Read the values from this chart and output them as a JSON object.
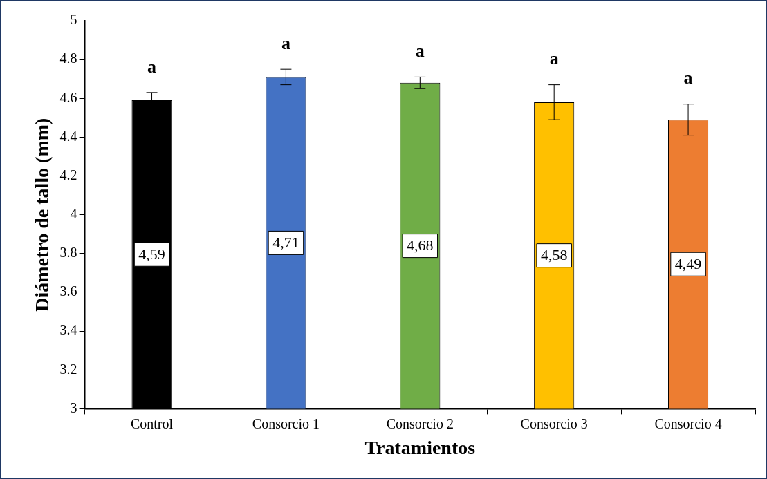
{
  "chart_data": {
    "type": "bar",
    "xlabel": "Tratamientos",
    "ylabel": "Diámetro de tallo (mm)",
    "categories": [
      "Control",
      "Consorcio 1",
      "Consorcio 2",
      "Consorcio 3",
      "Consorcio 4"
    ],
    "values": [
      4.59,
      4.71,
      4.68,
      4.58,
      4.49
    ],
    "colors": [
      "#000000",
      "#4472c4",
      "#70ad47",
      "#ffc000",
      "#ed7d31"
    ],
    "errors": [
      0.04,
      0.04,
      0.03,
      0.09,
      0.08
    ],
    "value_labels": [
      "4,59",
      "4,71",
      "4,68",
      "4,58",
      "4,49"
    ],
    "annotations": [
      "a",
      "a",
      "a",
      "a",
      "a"
    ],
    "ylim": [
      3,
      5
    ],
    "yticks": [
      3,
      3.2,
      3.4,
      3.6,
      3.8,
      4,
      4.2,
      4.4,
      4.6,
      4.8,
      5
    ],
    "grid": false,
    "legend": false
  }
}
